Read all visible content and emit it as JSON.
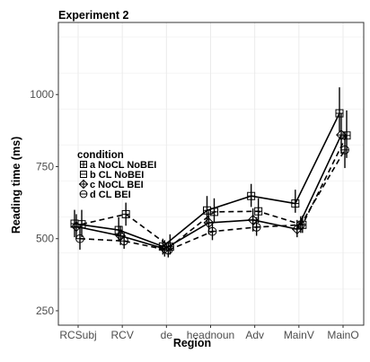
{
  "chart_data": {
    "type": "line",
    "title": "Experiment 2",
    "xlabel": "Region",
    "ylabel": "Reading time (ms)",
    "categories": [
      "RCSubj",
      "RCV",
      "de",
      "headnoun",
      "Adv",
      "MainV",
      "MainO"
    ],
    "ylim": [
      200,
      1250
    ],
    "yticks": [
      250,
      500,
      750,
      1000
    ],
    "grid": true,
    "legend": {
      "title": "condition",
      "position": "left-middle"
    },
    "series": [
      {
        "name": "a NoCL NoBEI",
        "marker": "square-plus",
        "dash": "solid",
        "values": [
          552,
          530,
          473,
          598,
          648,
          622,
          935
        ],
        "lower": [
          505,
          490,
          445,
          550,
          610,
          590,
          870
        ],
        "upper": [
          600,
          575,
          500,
          648,
          690,
          670,
          1025
        ]
      },
      {
        "name": "b CL NoBEI",
        "marker": "square-minus",
        "dash": "dashed",
        "values": [
          550,
          585,
          472,
          593,
          595,
          548,
          858
        ],
        "lower": [
          505,
          545,
          445,
          555,
          555,
          520,
          780
        ],
        "upper": [
          600,
          625,
          515,
          640,
          640,
          580,
          945
        ]
      },
      {
        "name": "c NoCL BEI",
        "marker": "diamond-plus",
        "dash": "solid",
        "values": [
          542,
          510,
          465,
          555,
          565,
          533,
          860
        ],
        "lower": [
          500,
          478,
          438,
          515,
          525,
          505,
          795
        ],
        "upper": [
          585,
          545,
          495,
          595,
          605,
          565,
          935
        ]
      },
      {
        "name": "d CL BEI",
        "marker": "circle-minus",
        "dash": "dashed",
        "values": [
          500,
          492,
          460,
          525,
          540,
          548,
          808
        ],
        "lower": [
          462,
          465,
          435,
          495,
          510,
          520,
          745
        ],
        "upper": [
          540,
          520,
          488,
          560,
          575,
          578,
          870
        ]
      }
    ],
    "colors": {
      "line": "#000000",
      "grid": "#ebebeb",
      "panel_border": "#333333"
    }
  }
}
